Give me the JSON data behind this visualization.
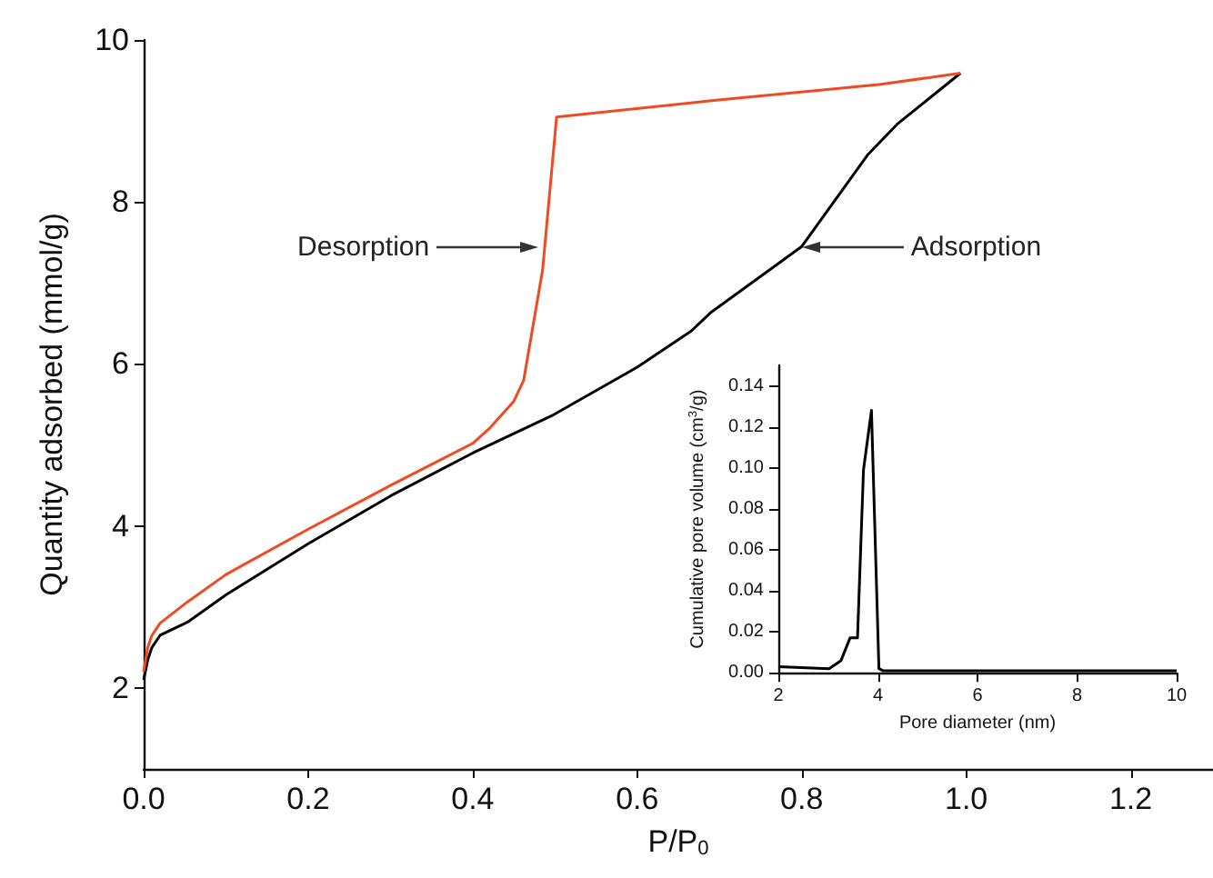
{
  "chart_data": [
    {
      "type": "line",
      "xlabel": "P/P$_{0}$",
      "ylabel": "Quantity adsorbed (mmol/g)",
      "xlim": [
        0,
        1.3
      ],
      "ylim": [
        1,
        10
      ],
      "xticks": [
        {
          "value": 0,
          "label": "0.0"
        },
        {
          "value": 0.2,
          "label": "0.2"
        },
        {
          "value": 0.4,
          "label": "0.4"
        },
        {
          "value": 0.6,
          "label": "0.6"
        },
        {
          "value": 0.8,
          "label": "0.8"
        },
        {
          "value": 1,
          "label": "1.0"
        },
        {
          "value": 1.2,
          "label": "1.2"
        }
      ],
      "yticks": [
        2,
        4,
        6,
        8,
        10
      ],
      "marker": "none",
      "grid": false,
      "series": [
        {
          "color": "#000000",
          "x": [
            0,
            0.005,
            0.01,
            0.02,
            0.053,
            0.1,
            0.2,
            0.3,
            0.4,
            0.496,
            0.6,
            0.666,
            0.69,
            0.8,
            0.88,
            0.916,
            0.993
          ],
          "values": [
            2.1,
            2.35,
            2.5,
            2.65,
            2.81,
            3.15,
            3.78,
            4.37,
            4.9,
            5.36,
            5.96,
            6.41,
            6.64,
            7.45,
            8.58,
            8.96,
            9.59
          ]
        },
        {
          "color": "#f04a23",
          "x": [
            0,
            0.005,
            0.01,
            0.02,
            0.053,
            0.1,
            0.2,
            0.3,
            0.4,
            0.42,
            0.45,
            0.462,
            0.485,
            0.502,
            0.69,
            0.894,
            0.993
          ],
          "values": [
            2.2,
            2.5,
            2.65,
            2.8,
            3.06,
            3.4,
            3.96,
            4.5,
            5.02,
            5.2,
            5.54,
            5.8,
            7.16,
            9.05,
            9.25,
            9.45,
            9.59
          ]
        }
      ],
      "annotations": [
        {
          "text": "Desorption",
          "x": 0.48,
          "y": 7.45
        },
        {
          "text": "Adsorption",
          "x": 0.8,
          "y": 7.45
        }
      ]
    },
    {
      "type": "line",
      "xlabel": "Pore diameter (nm)",
      "ylabel": "Cumulative pore volume (cm$^{3}$/g)",
      "xlim": [
        2,
        10
      ],
      "ylim": [
        0,
        0.15
      ],
      "xticks": [
        2,
        4,
        6,
        8,
        10
      ],
      "yticks": [
        {
          "value": 0,
          "label": "0.00"
        },
        {
          "value": 0.02,
          "label": "0.02"
        },
        {
          "value": 0.04,
          "label": "0.04"
        },
        {
          "value": 0.06,
          "label": "0.06"
        },
        {
          "value": 0.08,
          "label": "0.08"
        },
        {
          "value": 0.1,
          "label": "0.10"
        },
        {
          "value": 0.12,
          "label": "0.12"
        },
        {
          "value": 0.14,
          "label": "0.14"
        }
      ],
      "marker": "none",
      "grid": false,
      "series": [
        {
          "color": "#000000",
          "x": [
            2,
            3.02,
            3.14,
            3.26,
            3.44,
            3.59,
            3.71,
            3.87,
            4.02,
            4.1,
            6,
            7,
            8,
            10
          ],
          "values": [
            0.003,
            0.002,
            0.004,
            0.006,
            0.017,
            0.017,
            0.099,
            0.128,
            0.002,
            0.001,
            0.001,
            0.001,
            0.001,
            0.001
          ]
        }
      ]
    }
  ]
}
